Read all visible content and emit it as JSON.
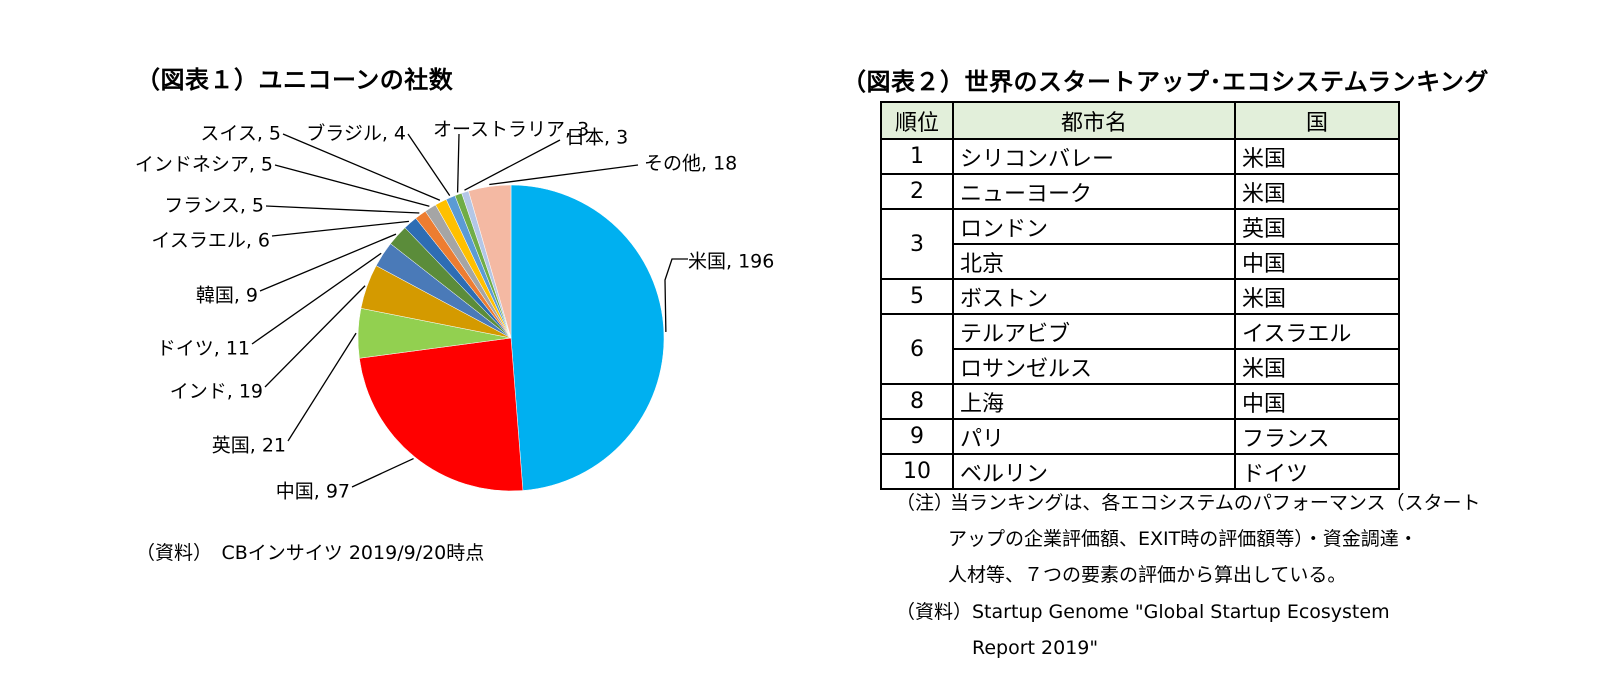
{
  "figure1": {
    "title": "（図表１）ユニコーンの社数",
    "source": "（資料）　CBインサイツ 2019/9/20時点"
  },
  "chart_data": {
    "type": "pie",
    "title": "（図表１）ユニコーンの社数",
    "slices": [
      {
        "name": "米国",
        "value": 196,
        "color": "#00b0f0"
      },
      {
        "name": "中国",
        "value": 97,
        "color": "#ff0000"
      },
      {
        "name": "英国",
        "value": 21,
        "color": "#92d050"
      },
      {
        "name": "インド",
        "value": 19,
        "color": "#d49a00"
      },
      {
        "name": "ドイツ",
        "value": 11,
        "color": "#4a7ab8"
      },
      {
        "name": "韓国",
        "value": 9,
        "color": "#5b8c3a"
      },
      {
        "name": "イスラエル",
        "value": 6,
        "color": "#2e6db4"
      },
      {
        "name": "フランス",
        "value": 5,
        "color": "#ed7d31"
      },
      {
        "name": "インドネシア",
        "value": 5,
        "color": "#a5a5a5"
      },
      {
        "name": "スイス",
        "value": 5,
        "color": "#ffc000"
      },
      {
        "name": "ブラジル",
        "value": 4,
        "color": "#5b9bd5"
      },
      {
        "name": "オーストラリア",
        "value": 3,
        "color": "#70ad47"
      },
      {
        "name": "日本",
        "value": 3,
        "color": "#b4c7e7"
      },
      {
        "name": "その他",
        "value": 18,
        "color": "#f4b9a3"
      }
    ],
    "labels": [
      {
        "text": "米国, 196"
      },
      {
        "text": "中国, 97"
      },
      {
        "text": "英国, 21"
      },
      {
        "text": "インド, 19"
      },
      {
        "text": "ドイツ, 11"
      },
      {
        "text": "韓国, 9"
      },
      {
        "text": "イスラエル, 6"
      },
      {
        "text": "フランス, 5"
      },
      {
        "text": "インドネシア, 5"
      },
      {
        "text": "スイス, 5"
      },
      {
        "text": "ブラジル, 4"
      },
      {
        "text": "オーストラリア, 3"
      },
      {
        "text": "日本, 3"
      },
      {
        "text": "その他, 18"
      }
    ]
  },
  "figure2": {
    "title": "（図表２）世界のスタートアップ･エコシステムランキング",
    "headers": {
      "rank": "順位",
      "city": "都市名",
      "country": "国"
    },
    "rows": [
      {
        "rank": "1",
        "city": "シリコンバレー",
        "country": "米国"
      },
      {
        "rank": "2",
        "city": "ニューヨーク",
        "country": "米国"
      },
      {
        "rank": "3",
        "city": "ロンドン",
        "country": "英国"
      },
      {
        "rank": "",
        "city": "北京",
        "country": "中国"
      },
      {
        "rank": "5",
        "city": "ボストン",
        "country": "米国"
      },
      {
        "rank": "6",
        "city": "テルアビブ",
        "country": "イスラエル"
      },
      {
        "rank": "",
        "city": "ロサンゼルス",
        "country": "米国"
      },
      {
        "rank": "8",
        "city": "上海",
        "country": "中国"
      },
      {
        "rank": "9",
        "city": "パリ",
        "country": "フランス"
      },
      {
        "rank": "10",
        "city": "ベルリン",
        "country": "ドイツ"
      }
    ],
    "note_label": "（注）",
    "note_lines": [
      "当ランキングは、各エコシステムのパフォーマンス（スタート",
      "アップの企業評価額、EXIT時の評価額等）・資金調達・",
      "人材等、７つの要素の評価から算出している。"
    ],
    "source_label": "（資料）",
    "source_lines": [
      "Startup Genome \"Global Startup Ecosystem",
      "Report 2019\""
    ]
  }
}
